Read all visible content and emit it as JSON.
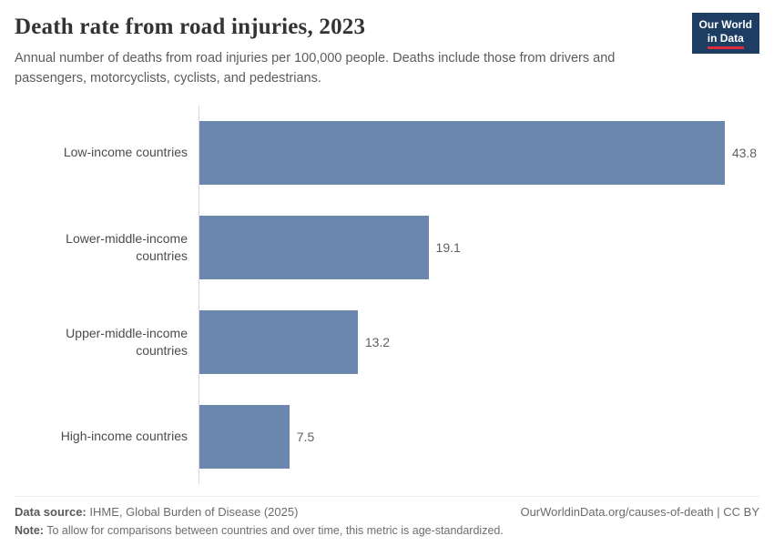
{
  "header": {
    "title": "Death rate from road injuries, 2023",
    "subtitle": "Annual number of deaths from road injuries per 100,000 people. Deaths include those from drivers and passengers, motorcyclists, cyclists, and pedestrians.",
    "logo": {
      "line1": "Our World",
      "line2": "in Data"
    }
  },
  "chart_data": {
    "type": "bar",
    "orientation": "horizontal",
    "title": "Death rate from road injuries, 2023",
    "categories": [
      "Low-income countries",
      "Lower-middle-income countries",
      "Upper-middle-income countries",
      "High-income countries"
    ],
    "values": [
      43.8,
      19.1,
      13.2,
      7.5
    ],
    "value_labels": [
      "43.8",
      "19.1",
      "13.2",
      "7.5"
    ],
    "xlabel": "",
    "ylabel": "",
    "xlim": [
      0,
      46
    ],
    "grid": false,
    "legend": false,
    "bar_color": "#6c87ad"
  },
  "footer": {
    "source_label": "Data source:",
    "source_text": " IHME, Global Burden of Disease (2025)",
    "link": "OurWorldinData.org/causes-of-death | CC BY",
    "note_label": "Note:",
    "note_text": " To allow for comparisons between countries and over time, this metric is age-standardized."
  },
  "colors": {
    "bar": "#6c87ad",
    "accent_red": "#dc2c3e",
    "logo_bg": "#1d3d63",
    "axis_line": "#d9d9d9"
  }
}
